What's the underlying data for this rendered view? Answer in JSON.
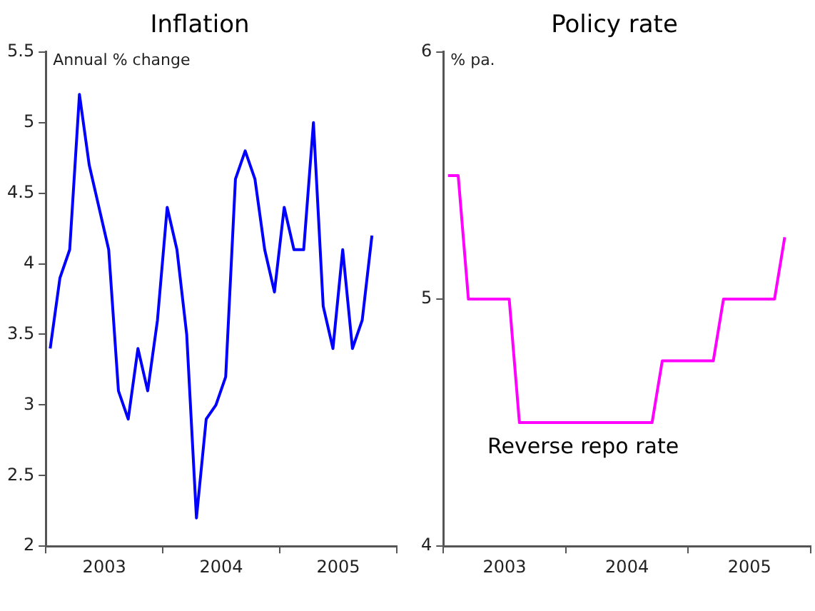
{
  "chart_data": [
    {
      "type": "line",
      "title": "Inflation",
      "ylabel": "Annual % change",
      "grid": false,
      "marker": "none",
      "line_style": "solid",
      "x": [
        "2003-01-15",
        "2003-02-15",
        "2003-03-15",
        "2003-04-15",
        "2003-05-15",
        "2003-06-15",
        "2003-07-15",
        "2003-08-15",
        "2003-09-15",
        "2003-10-15",
        "2003-11-15",
        "2003-12-15",
        "2004-01-15",
        "2004-02-15",
        "2004-03-15",
        "2004-04-15",
        "2004-05-15",
        "2004-06-15",
        "2004-07-15",
        "2004-08-15",
        "2004-09-15",
        "2004-10-15",
        "2004-11-15",
        "2004-12-15",
        "2005-01-15",
        "2005-02-15",
        "2005-03-15",
        "2005-04-15",
        "2005-05-15",
        "2005-06-15",
        "2005-07-15",
        "2005-08-15",
        "2005-09-15",
        "2005-10-15"
      ],
      "xlim": [
        "2003-01-01",
        "2006-01-01"
      ],
      "xticks": [
        {
          "value": "2003-01-01",
          "label": null
        },
        {
          "value": "2003-07-01",
          "label": "2003"
        },
        {
          "value": "2004-01-01",
          "label": null
        },
        {
          "value": "2004-07-01",
          "label": "2004"
        },
        {
          "value": "2005-01-01",
          "label": null
        },
        {
          "value": "2005-07-01",
          "label": "2005"
        },
        {
          "value": "2006-01-01",
          "label": null
        }
      ],
      "ylim": [
        2,
        5.5
      ],
      "yticks": [
        2,
        2.5,
        3,
        3.5,
        4,
        4.5,
        5,
        5.5
      ],
      "series": [
        {
          "color": "#0000ff",
          "values": [
            3.4,
            3.9,
            4.1,
            5.2,
            4.7,
            4.4,
            4.1,
            3.1,
            2.9,
            3.4,
            3.1,
            3.6,
            4.4,
            4.1,
            3.5,
            2.2,
            2.9,
            3.0,
            3.2,
            4.6,
            4.8,
            4.6,
            4.1,
            3.8,
            4.4,
            4.1,
            4.1,
            5.0,
            3.7,
            3.4,
            4.1,
            3.4,
            3.6,
            4.2
          ]
        }
      ]
    },
    {
      "type": "line",
      "title": "Policy rate",
      "ylabel": "% pa.",
      "grid": false,
      "marker": "none",
      "line_style": "solid",
      "x": [
        "2003-01-15",
        "2003-02-15",
        "2003-03-15",
        "2003-04-15",
        "2003-05-15",
        "2003-06-15",
        "2003-07-15",
        "2003-08-15",
        "2003-09-15",
        "2003-10-15",
        "2003-11-15",
        "2003-12-15",
        "2004-01-15",
        "2004-02-15",
        "2004-03-15",
        "2004-04-15",
        "2004-05-15",
        "2004-06-15",
        "2004-07-15",
        "2004-08-15",
        "2004-09-15",
        "2004-10-15",
        "2004-11-15",
        "2004-12-15",
        "2005-01-15",
        "2005-02-15",
        "2005-03-15",
        "2005-04-15",
        "2005-05-15",
        "2005-06-15",
        "2005-07-15",
        "2005-08-15",
        "2005-09-15",
        "2005-10-15"
      ],
      "xlim": [
        "2003-01-01",
        "2006-01-01"
      ],
      "xticks": [
        {
          "value": "2003-01-01",
          "label": null
        },
        {
          "value": "2003-07-01",
          "label": "2003"
        },
        {
          "value": "2004-01-01",
          "label": null
        },
        {
          "value": "2004-07-01",
          "label": "2004"
        },
        {
          "value": "2005-01-01",
          "label": null
        },
        {
          "value": "2005-07-01",
          "label": "2005"
        },
        {
          "value": "2006-01-01",
          "label": null
        }
      ],
      "ylim": [
        4,
        6
      ],
      "yticks": [
        4,
        5,
        6
      ],
      "series": [
        {
          "name": "Reverse repo rate",
          "color": "#ff00ff",
          "values": [
            5.5,
            5.5,
            5.0,
            5.0,
            5.0,
            5.0,
            5.0,
            4.5,
            4.5,
            4.5,
            4.5,
            4.5,
            4.5,
            4.5,
            4.5,
            4.5,
            4.5,
            4.5,
            4.5,
            4.5,
            4.5,
            4.75,
            4.75,
            4.75,
            4.75,
            4.75,
            4.75,
            5.0,
            5.0,
            5.0,
            5.0,
            5.0,
            5.0,
            5.25
          ]
        }
      ]
    }
  ]
}
